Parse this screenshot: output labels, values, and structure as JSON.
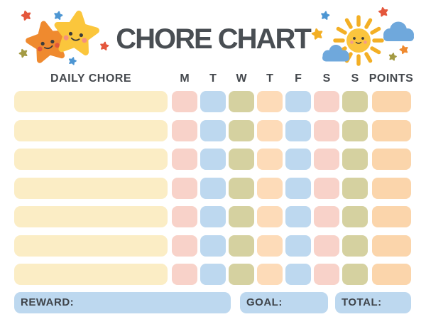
{
  "title": "CHORE CHART",
  "table": {
    "chore_column_header": "DAILY CHORE",
    "day_headers": [
      "M",
      "T",
      "W",
      "T",
      "F",
      "S",
      "S"
    ],
    "points_header": "POINTS",
    "row_count": 7,
    "row_day_pattern": [
      "pink",
      "blue",
      "olive",
      "peach",
      "blue",
      "pink",
      "olive"
    ],
    "chore_values": [
      "",
      "",
      "",
      "",
      "",
      "",
      ""
    ],
    "points_values": [
      "",
      "",
      "",
      "",
      "",
      "",
      ""
    ]
  },
  "footer": {
    "reward_label": "REWARD:",
    "reward_value": "",
    "goal_label": "GOAL:",
    "goal_value": "",
    "total_label": "TOTAL:",
    "total_value": ""
  },
  "icons": {
    "left_decoration": [
      "orange-star-icon",
      "yellow-star-icon",
      "red-star-icon",
      "blue-star-icon",
      "olive-star-icon"
    ],
    "right_decoration": [
      "sun-icon",
      "cloud-icon",
      "red-star-icon",
      "blue-star-icon",
      "yellow-star-icon",
      "orange-star-icon",
      "olive-star-icon"
    ]
  },
  "colors": {
    "title_text": "#494E53",
    "header_text": "#44484D",
    "footer_text": "#3F444A",
    "chore_bar": "#FBEDC5",
    "pink": "#F8D2C9",
    "blue": "#BDD8EF",
    "olive": "#D5D1A0",
    "peach": "#FDDBB8",
    "points_cell": "#FBD5AB",
    "footer_box": "#BDD8EF",
    "sun": "#FBC53E",
    "sun_ray": "#F3AF25",
    "cloud": "#6FA8DC",
    "star_orange": "#EF8A2F",
    "star_yellow": "#FBC63C",
    "star_red": "#E4573C",
    "star_blue": "#4D96D3",
    "star_olive": "#A49B44",
    "face": "#3B3B3B",
    "cheek_orange_star": "#E2573B",
    "cheek_yellow_star": "#F4907E",
    "cheek_sun": "#F49B8B"
  }
}
